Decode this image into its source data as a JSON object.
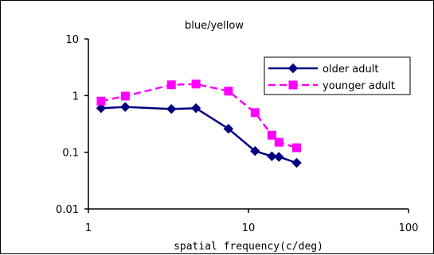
{
  "chart_data": {
    "type": "line",
    "title": "blue/yellow",
    "xlabel": "spatial frequency(c/deg)",
    "ylabel": "",
    "x_scale": "log",
    "y_scale": "log",
    "xlim": [
      1,
      100
    ],
    "ylim": [
      0.01,
      10
    ],
    "x_ticks": [
      1,
      10,
      100
    ],
    "x_tick_labels": [
      "1",
      "10",
      "100"
    ],
    "y_ticks": [
      0.01,
      0.1,
      1,
      10
    ],
    "y_tick_labels": [
      "0.01",
      "0.1",
      "1",
      "10"
    ],
    "grid": false,
    "legend_position": "top-right",
    "series": [
      {
        "name": "older adult",
        "color": "#000080",
        "marker": "diamond",
        "dash": "solid",
        "x": [
          1.2,
          1.7,
          3.3,
          4.7,
          7.5,
          11,
          14,
          15.5,
          20
        ],
        "y": [
          0.6,
          0.63,
          0.58,
          0.6,
          0.26,
          0.105,
          0.085,
          0.083,
          0.065
        ]
      },
      {
        "name": "younger adult",
        "color": "#ff00ff",
        "marker": "square",
        "dash": "dashed",
        "x": [
          1.2,
          1.7,
          3.3,
          4.7,
          7.5,
          11,
          14,
          15.5,
          20
        ],
        "y": [
          0.8,
          0.98,
          1.55,
          1.6,
          1.2,
          0.5,
          0.2,
          0.15,
          0.12
        ]
      }
    ]
  }
}
